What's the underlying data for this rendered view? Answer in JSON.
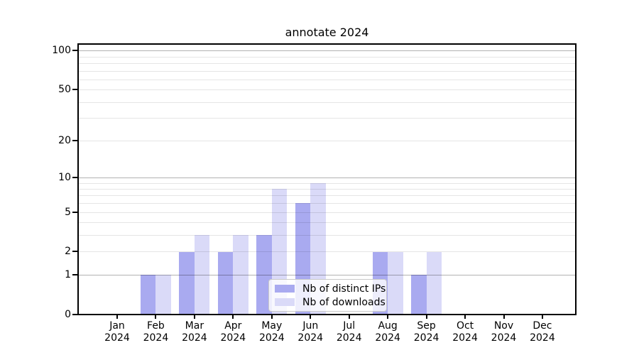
{
  "title": "annotate 2024",
  "chart_data": {
    "type": "bar",
    "title": "annotate 2024",
    "categories": [
      "Jan 2024",
      "Feb 2024",
      "Mar 2024",
      "Apr 2024",
      "May 2024",
      "Jun 2024",
      "Jul 2024",
      "Aug 2024",
      "Sep 2024",
      "Oct 2024",
      "Nov 2024",
      "Dec 2024"
    ],
    "series": [
      {
        "name": "Nb of distinct IPs",
        "color": "#a9aaf0",
        "values": [
          0,
          1,
          2,
          2,
          3,
          6,
          0,
          2,
          1,
          0,
          0,
          0
        ]
      },
      {
        "name": "Nb of downloads",
        "color": "#dadaf8",
        "values": [
          0,
          1,
          3,
          3,
          8,
          9,
          0,
          2,
          2,
          0,
          0,
          0
        ]
      }
    ],
    "xlabel": "",
    "ylabel": "",
    "yscale": "log10(1+x)",
    "ylim": [
      0,
      110
    ],
    "yticks": [
      0,
      1,
      2,
      5,
      10,
      20,
      50,
      100
    ],
    "grid_major": [
      1,
      10,
      100
    ],
    "grid_minor": [
      2,
      3,
      4,
      5,
      6,
      7,
      8,
      9,
      20,
      30,
      40,
      50,
      60,
      70,
      80,
      90
    ],
    "grid": true,
    "legend_position": "lower center"
  },
  "colors": {
    "major_grid": "#b5b5b5",
    "minor_grid": "#e7e7e7",
    "spine": "#000000",
    "legend_border": "#c9c9c9",
    "background": "#ffffff"
  }
}
